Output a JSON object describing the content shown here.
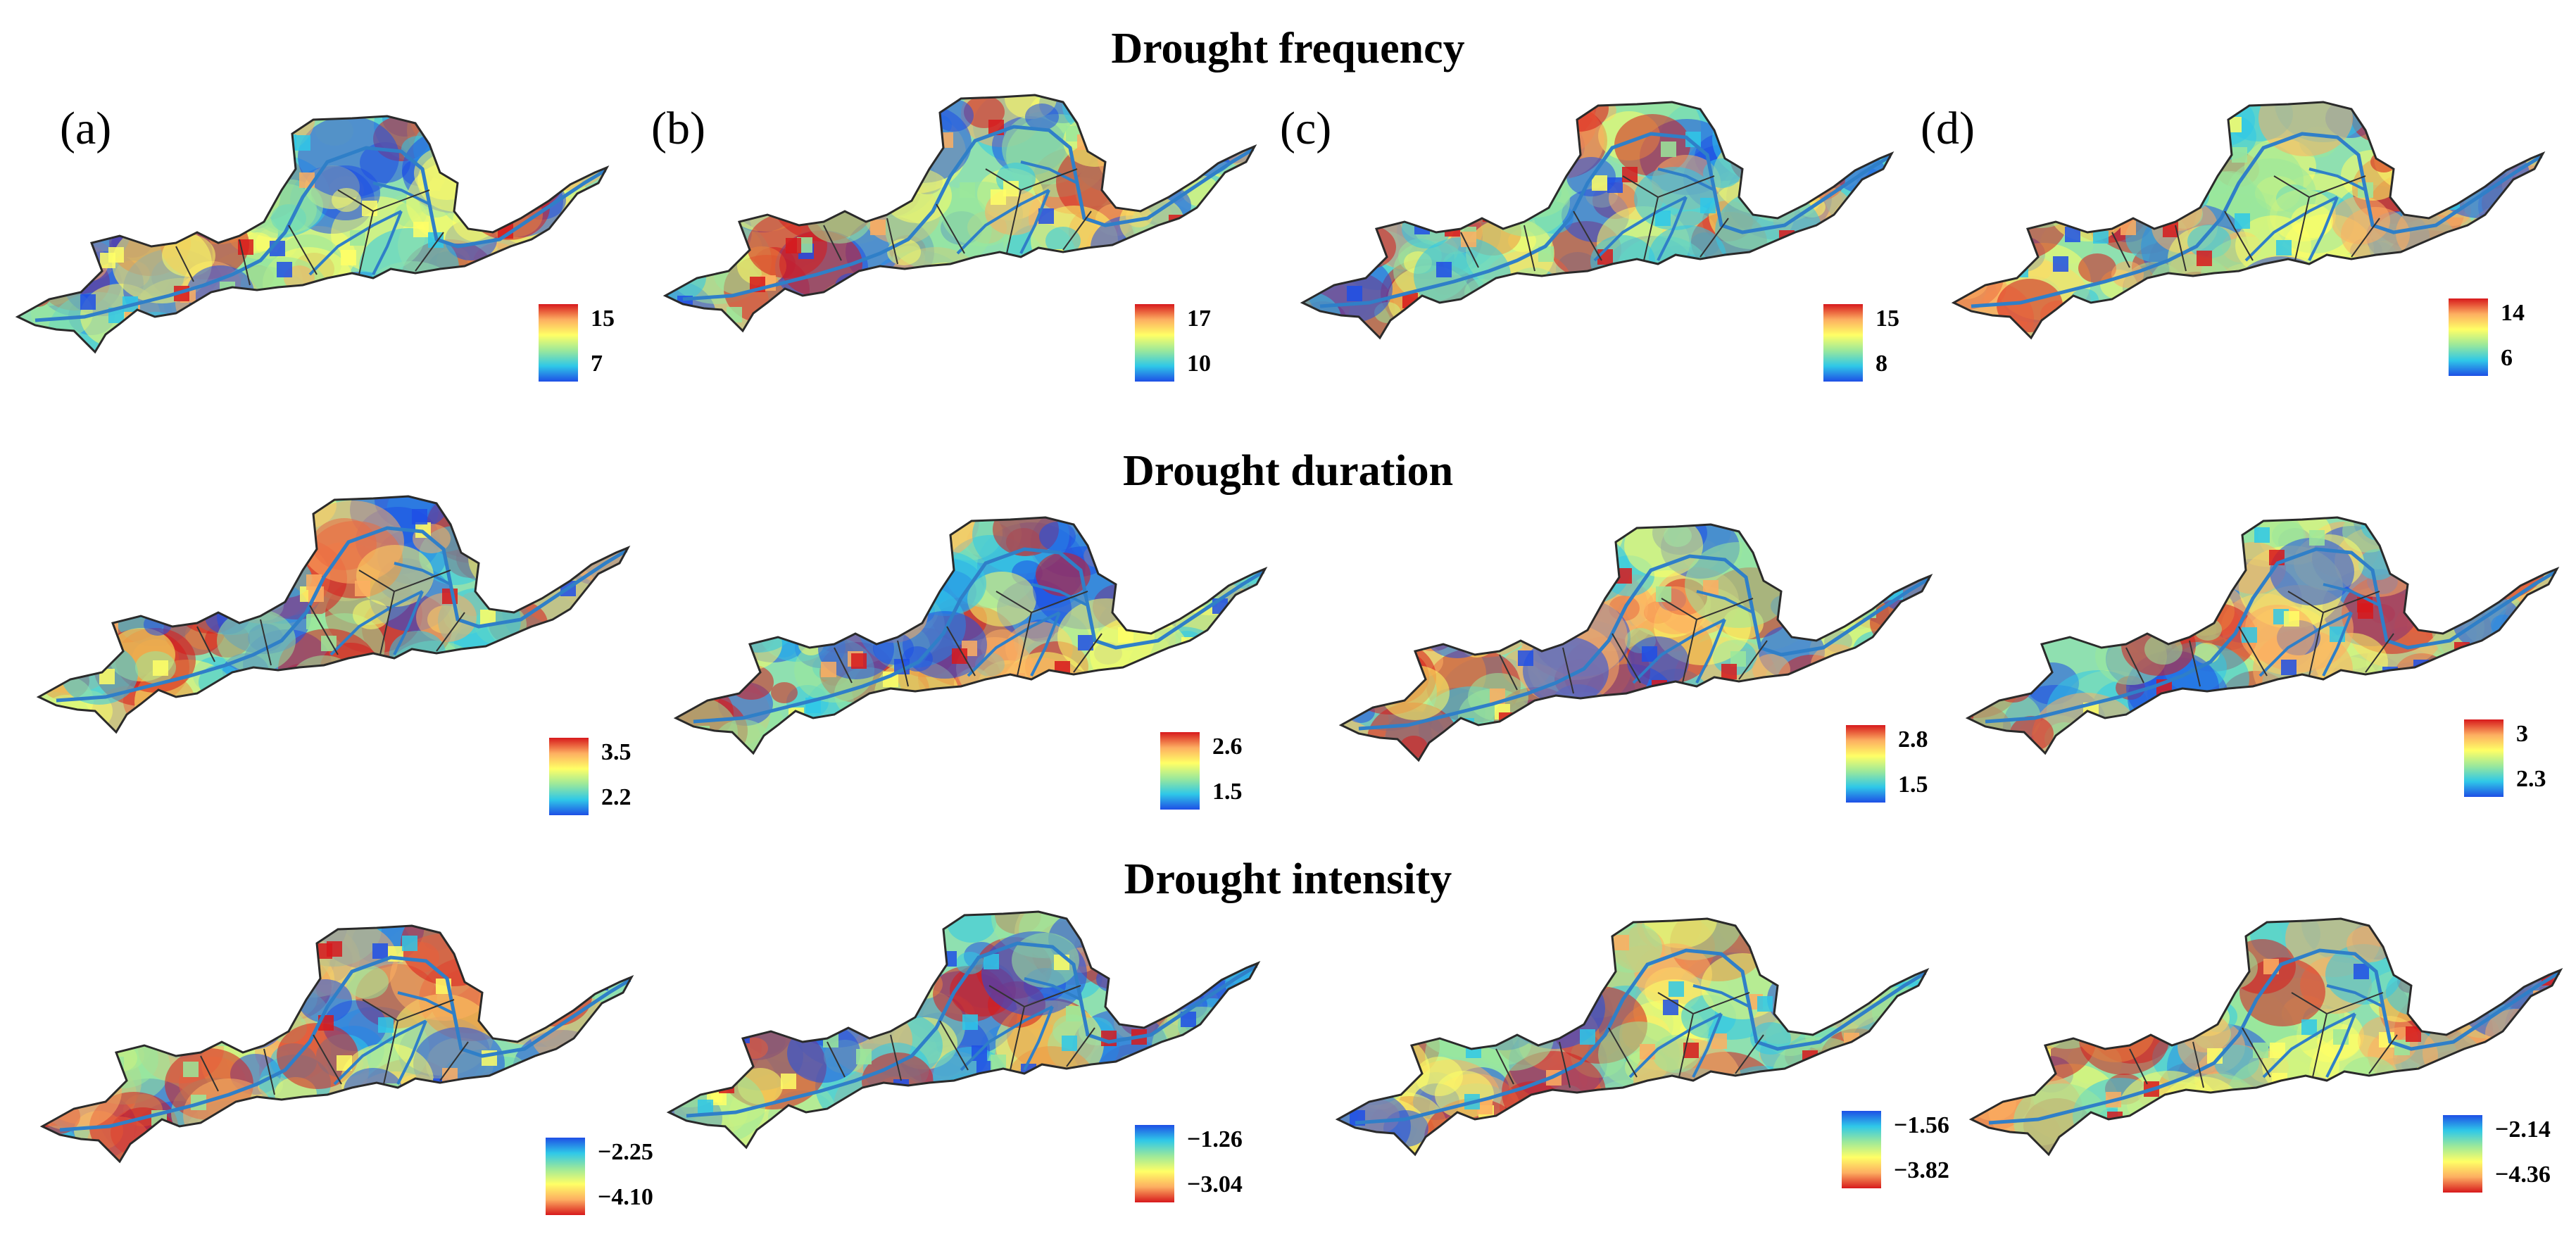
{
  "titles": {
    "frequency": "Drought frequency",
    "duration": "Drought duration",
    "intensity": "Drought intensity"
  },
  "panel_labels": [
    "(a)",
    "(b)",
    "(c)",
    "(d)"
  ],
  "colormap": {
    "warm_high": [
      "#d7191c",
      "#fdae61",
      "#ffff66",
      "#9be89b",
      "#2fc8e8",
      "#1e4fe6"
    ],
    "cool_high": [
      "#1e4fe6",
      "#2fc8e8",
      "#9be89b",
      "#ffff66",
      "#fdae61",
      "#d7191c"
    ]
  },
  "rows": [
    {
      "key": "frequency",
      "legend_order": "warm_high",
      "legends": [
        {
          "top": "15",
          "bottom": "7"
        },
        {
          "top": "17",
          "bottom": "10"
        },
        {
          "top": "15",
          "bottom": "8"
        },
        {
          "top": "14",
          "bottom": "6"
        }
      ]
    },
    {
      "key": "duration",
      "legend_order": "warm_high",
      "legends": [
        {
          "top": "3.5",
          "bottom": "2.2"
        },
        {
          "top": "2.6",
          "bottom": "1.5"
        },
        {
          "top": "2.8",
          "bottom": "1.5"
        },
        {
          "top": "3",
          "bottom": "2.3"
        }
      ]
    },
    {
      "key": "intensity",
      "legend_order": "cool_high",
      "legends": [
        {
          "top": "−2.25",
          "bottom": "−4.10"
        },
        {
          "top": "−1.26",
          "bottom": "−3.04"
        },
        {
          "top": "−1.56",
          "bottom": "−3.82"
        },
        {
          "top": "−2.14",
          "bottom": "−4.36"
        }
      ]
    }
  ]
}
